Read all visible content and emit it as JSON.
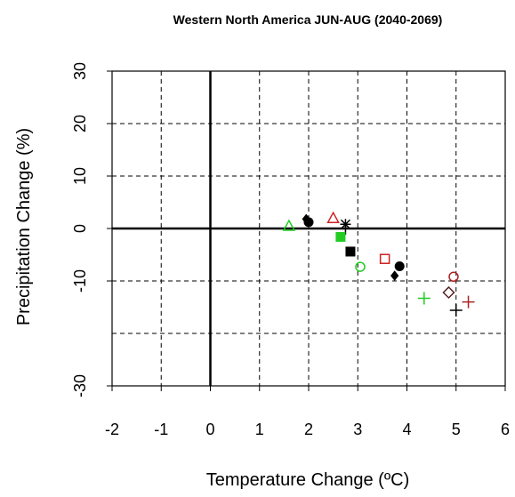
{
  "chart_data": {
    "type": "scatter",
    "title": "Western North America JUN-AUG (2040-2069)",
    "xlabel": "Temperature Change (ºC)",
    "ylabel": "Precipitation Change (%)",
    "xlim": [
      -2,
      6
    ],
    "ylim": [
      -30,
      30
    ],
    "x_ticks": [
      {
        "value": -2,
        "label": "-2",
        "color": "#000000"
      },
      {
        "value": -1,
        "label": "-1",
        "color": "#cc0000"
      },
      {
        "value": 0,
        "label": "0",
        "color": "#000000"
      },
      {
        "value": 1,
        "label": "1",
        "color": "#000000"
      },
      {
        "value": 2,
        "label": "2",
        "color": "#000000"
      },
      {
        "value": 3,
        "label": "3",
        "color": "#000000"
      },
      {
        "value": 4,
        "label": "4",
        "color": "#000000"
      },
      {
        "value": 5,
        "label": "5",
        "color": "#000000"
      },
      {
        "value": 6,
        "label": "6",
        "color": "#cc0000"
      }
    ],
    "y_ticks": [
      {
        "value": 30,
        "label": "30"
      },
      {
        "value": 20,
        "label": "20"
      },
      {
        "value": 10,
        "label": "10"
      },
      {
        "value": 0,
        "label": "0"
      },
      {
        "value": -10,
        "label": "-10"
      },
      {
        "value": -30,
        "label": "-30"
      }
    ],
    "x_grid": [
      -1,
      1,
      2,
      3,
      4,
      5
    ],
    "y_grid": [
      30,
      20,
      10,
      -10,
      -20,
      -30
    ],
    "zero_lines": {
      "x": 0,
      "y": 0
    },
    "grid": true,
    "points": [
      {
        "x": 1.6,
        "y": 0.5,
        "marker": "triangle",
        "color": "#22cc22"
      },
      {
        "x": 1.95,
        "y": 1.8,
        "marker": "diamond-filled",
        "color": "#000000"
      },
      {
        "x": 2.0,
        "y": 1.2,
        "marker": "circle-filled",
        "color": "#000000"
      },
      {
        "x": 2.5,
        "y": 2.0,
        "marker": "triangle",
        "color": "#cc2222"
      },
      {
        "x": 2.75,
        "y": 0.8,
        "marker": "star",
        "color": "#000000"
      },
      {
        "x": 2.75,
        "y": 0.0,
        "marker": "plus",
        "color": "#000000"
      },
      {
        "x": 2.65,
        "y": -1.6,
        "marker": "square-filled",
        "color": "#22cc22"
      },
      {
        "x": 2.85,
        "y": -4.4,
        "marker": "square-filled",
        "color": "#000000"
      },
      {
        "x": 3.05,
        "y": -7.3,
        "marker": "circle",
        "color": "#22cc22"
      },
      {
        "x": 3.55,
        "y": -5.8,
        "marker": "square",
        "color": "#cc2222"
      },
      {
        "x": 3.85,
        "y": -7.2,
        "marker": "circle-filled",
        "color": "#000000"
      },
      {
        "x": 3.75,
        "y": -9.0,
        "marker": "diamond-filled",
        "color": "#000000"
      },
      {
        "x": 4.35,
        "y": -13.3,
        "marker": "plus",
        "color": "#22cc22"
      },
      {
        "x": 4.95,
        "y": -9.2,
        "marker": "circle",
        "color": "#aa2222"
      },
      {
        "x": 4.85,
        "y": -12.2,
        "marker": "diamond",
        "color": "#552222"
      },
      {
        "x": 5.25,
        "y": -14.0,
        "marker": "plus",
        "color": "#aa2222"
      },
      {
        "x": 5.0,
        "y": -15.6,
        "marker": "plus",
        "color": "#000000"
      }
    ]
  }
}
